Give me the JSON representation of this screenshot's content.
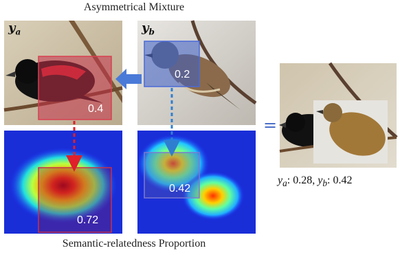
{
  "title": "Asymmetrical Mixture",
  "caption": "Semantic-relatedness Proportion",
  "image_a": {
    "symbol": "y",
    "subscript": "a",
    "crop_value": "0.4",
    "heat_value": "0.72"
  },
  "image_b": {
    "symbol": "y",
    "subscript": "b",
    "crop_value": "0.2",
    "heat_value": "0.42"
  },
  "equals": "=",
  "result": {
    "sym_a": "y",
    "sub_a": "a",
    "val_a": ": 0.28, ",
    "sym_b": "y",
    "sub_b": "b",
    "val_b": ": 0.42"
  },
  "colors": {
    "red_box": "#c4324a",
    "blue_box": "#3d5fc8",
    "arrow_red": "#e0202a",
    "arrow_blue": "#2f7fd0"
  }
}
